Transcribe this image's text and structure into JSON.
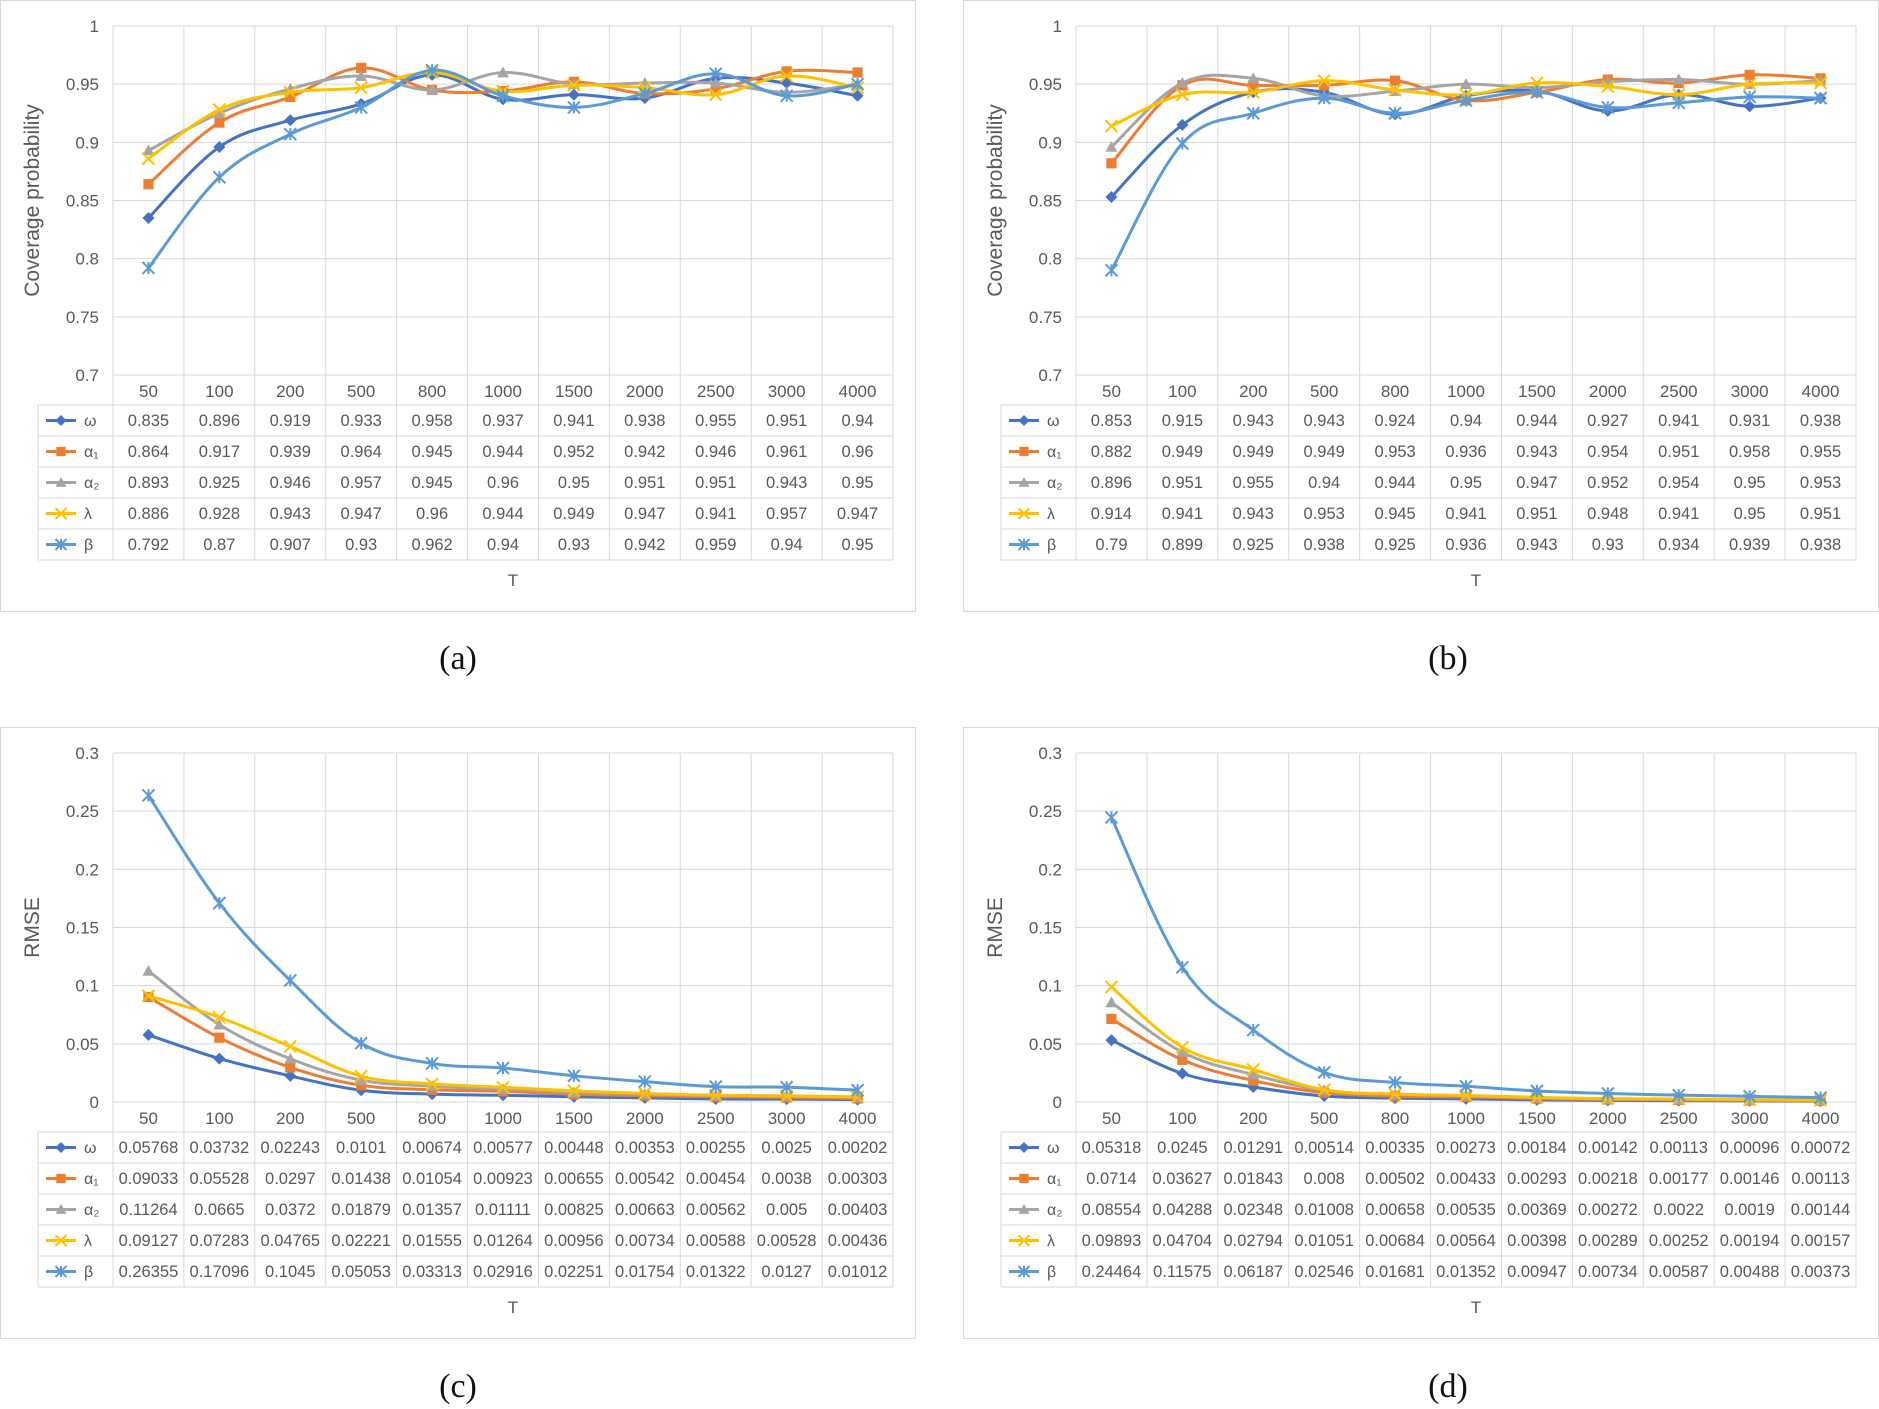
{
  "categories": [
    "50",
    "100",
    "200",
    "500",
    "800",
    "1000",
    "1500",
    "2000",
    "2500",
    "3000",
    "4000"
  ],
  "colors": {
    "omega": "#4472c4",
    "alpha1": "#ed7d31",
    "alpha2": "#a5a5a5",
    "lambda": "#ffc000",
    "beta": "#5b9bd5"
  },
  "captions": [
    "(a)",
    "(b)",
    "(c)",
    "(d)"
  ],
  "chart_data": [
    {
      "type": "line",
      "ylabel": "Coverage probability",
      "xlabel": "T",
      "ylim": [
        0.7,
        1
      ],
      "yticks": [
        "0.7",
        "0.75",
        "0.8",
        "0.85",
        "0.9",
        "0.95",
        "1"
      ],
      "categories": [
        "50",
        "100",
        "200",
        "500",
        "800",
        "1000",
        "1500",
        "2000",
        "2500",
        "3000",
        "4000"
      ],
      "series": [
        {
          "name": "ω",
          "marker": "diamond",
          "color": "#4472c4",
          "values": [
            "0.835",
            "0.896",
            "0.919",
            "0.933",
            "0.958",
            "0.937",
            "0.941",
            "0.938",
            "0.955",
            "0.951",
            "0.94"
          ]
        },
        {
          "name": "α₁",
          "marker": "square",
          "color": "#ed7d31",
          "values": [
            "0.864",
            "0.917",
            "0.939",
            "0.964",
            "0.945",
            "0.944",
            "0.952",
            "0.942",
            "0.946",
            "0.961",
            "0.96"
          ]
        },
        {
          "name": "α₂",
          "marker": "triangle",
          "color": "#a5a5a5",
          "values": [
            "0.893",
            "0.925",
            "0.946",
            "0.957",
            "0.945",
            "0.96",
            "0.95",
            "0.951",
            "0.951",
            "0.943",
            "0.95"
          ]
        },
        {
          "name": "λ",
          "marker": "x",
          "color": "#ffc000",
          "values": [
            "0.886",
            "0.928",
            "0.943",
            "0.947",
            "0.96",
            "0.944",
            "0.949",
            "0.947",
            "0.941",
            "0.957",
            "0.947"
          ]
        },
        {
          "name": "β",
          "marker": "star",
          "color": "#5b9bd5",
          "values": [
            "0.792",
            "0.87",
            "0.907",
            "0.93",
            "0.962",
            "0.94",
            "0.93",
            "0.942",
            "0.959",
            "0.94",
            "0.95"
          ]
        }
      ]
    },
    {
      "type": "line",
      "ylabel": "Coverage probability",
      "xlabel": "T",
      "ylim": [
        0.7,
        1
      ],
      "yticks": [
        "0.7",
        "0.75",
        "0.8",
        "0.85",
        "0.9",
        "0.95",
        "1"
      ],
      "categories": [
        "50",
        "100",
        "200",
        "500",
        "800",
        "1000",
        "1500",
        "2000",
        "2500",
        "3000",
        "4000"
      ],
      "series": [
        {
          "name": "ω",
          "marker": "diamond",
          "color": "#4472c4",
          "values": [
            "0.853",
            "0.915",
            "0.943",
            "0.943",
            "0.924",
            "0.94",
            "0.944",
            "0.927",
            "0.941",
            "0.931",
            "0.938"
          ]
        },
        {
          "name": "α₁",
          "marker": "square",
          "color": "#ed7d31",
          "values": [
            "0.882",
            "0.949",
            "0.949",
            "0.949",
            "0.953",
            "0.936",
            "0.943",
            "0.954",
            "0.951",
            "0.958",
            "0.955"
          ]
        },
        {
          "name": "α₂",
          "marker": "triangle",
          "color": "#a5a5a5",
          "values": [
            "0.896",
            "0.951",
            "0.955",
            "0.94",
            "0.944",
            "0.95",
            "0.947",
            "0.952",
            "0.954",
            "0.95",
            "0.953"
          ]
        },
        {
          "name": "λ",
          "marker": "x",
          "color": "#ffc000",
          "values": [
            "0.914",
            "0.941",
            "0.943",
            "0.953",
            "0.945",
            "0.941",
            "0.951",
            "0.948",
            "0.941",
            "0.95",
            "0.951"
          ]
        },
        {
          "name": "β",
          "marker": "star",
          "color": "#5b9bd5",
          "values": [
            "0.79",
            "0.899",
            "0.925",
            "0.938",
            "0.925",
            "0.936",
            "0.943",
            "0.93",
            "0.934",
            "0.939",
            "0.938"
          ]
        }
      ]
    },
    {
      "type": "line",
      "ylabel": "RMSE",
      "xlabel": "T",
      "ylim": [
        0,
        0.3
      ],
      "yticks": [
        "0",
        "0.05",
        "0.1",
        "0.15",
        "0.2",
        "0.25",
        "0.3"
      ],
      "categories": [
        "50",
        "100",
        "200",
        "500",
        "800",
        "1000",
        "1500",
        "2000",
        "2500",
        "3000",
        "4000"
      ],
      "series": [
        {
          "name": "ω",
          "marker": "diamond",
          "color": "#4472c4",
          "values": [
            "0.05768",
            "0.03732",
            "0.02243",
            "0.0101",
            "0.00674",
            "0.00577",
            "0.00448",
            "0.00353",
            "0.00255",
            "0.0025",
            "0.00202"
          ]
        },
        {
          "name": "α₁",
          "marker": "square",
          "color": "#ed7d31",
          "values": [
            "0.09033",
            "0.05528",
            "0.0297",
            "0.01438",
            "0.01054",
            "0.00923",
            "0.00655",
            "0.00542",
            "0.00454",
            "0.0038",
            "0.00303"
          ]
        },
        {
          "name": "α₂",
          "marker": "triangle",
          "color": "#a5a5a5",
          "values": [
            "0.11264",
            "0.0665",
            "0.0372",
            "0.01879",
            "0.01357",
            "0.01111",
            "0.00825",
            "0.00663",
            "0.00562",
            "0.005",
            "0.00403"
          ]
        },
        {
          "name": "λ",
          "marker": "x",
          "color": "#ffc000",
          "values": [
            "0.09127",
            "0.07283",
            "0.04765",
            "0.02221",
            "0.01555",
            "0.01264",
            "0.00956",
            "0.00734",
            "0.00588",
            "0.00528",
            "0.00436"
          ]
        },
        {
          "name": "β",
          "marker": "star",
          "color": "#5b9bd5",
          "values": [
            "0.26355",
            "0.17096",
            "0.1045",
            "0.05053",
            "0.03313",
            "0.02916",
            "0.02251",
            "0.01754",
            "0.01322",
            "0.0127",
            "0.01012"
          ]
        }
      ]
    },
    {
      "type": "line",
      "ylabel": "RMSE",
      "xlabel": "T",
      "ylim": [
        0,
        0.3
      ],
      "yticks": [
        "0",
        "0.05",
        "0.1",
        "0.15",
        "0.2",
        "0.25",
        "0.3"
      ],
      "categories": [
        "50",
        "100",
        "200",
        "500",
        "800",
        "1000",
        "1500",
        "2000",
        "2500",
        "3000",
        "4000"
      ],
      "series": [
        {
          "name": "ω",
          "marker": "diamond",
          "color": "#4472c4",
          "values": [
            "0.05318",
            "0.0245",
            "0.01291",
            "0.00514",
            "0.00335",
            "0.00273",
            "0.00184",
            "0.00142",
            "0.00113",
            "0.00096",
            "0.00072"
          ]
        },
        {
          "name": "α₁",
          "marker": "square",
          "color": "#ed7d31",
          "values": [
            "0.0714",
            "0.03627",
            "0.01843",
            "0.008",
            "0.00502",
            "0.00433",
            "0.00293",
            "0.00218",
            "0.00177",
            "0.00146",
            "0.00113"
          ]
        },
        {
          "name": "α₂",
          "marker": "triangle",
          "color": "#a5a5a5",
          "values": [
            "0.08554",
            "0.04288",
            "0.02348",
            "0.01008",
            "0.00658",
            "0.00535",
            "0.00369",
            "0.00272",
            "0.0022",
            "0.0019",
            "0.00144"
          ]
        },
        {
          "name": "λ",
          "marker": "x",
          "color": "#ffc000",
          "values": [
            "0.09893",
            "0.04704",
            "0.02794",
            "0.01051",
            "0.00684",
            "0.00564",
            "0.00398",
            "0.00289",
            "0.00252",
            "0.00194",
            "0.00157"
          ]
        },
        {
          "name": "β",
          "marker": "star",
          "color": "#5b9bd5",
          "values": [
            "0.24464",
            "0.11575",
            "0.06187",
            "0.02546",
            "0.01681",
            "0.01352",
            "0.00947",
            "0.00734",
            "0.00587",
            "0.00488",
            "0.00373"
          ]
        }
      ]
    }
  ]
}
